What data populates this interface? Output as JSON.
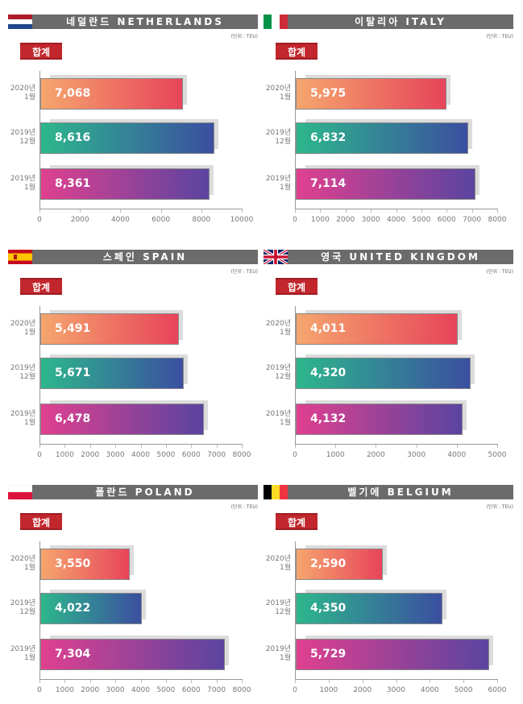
{
  "unit_label": "(단위 : TEU)",
  "badge_label": "합계",
  "bar_colors": [
    [
      "#f5a66e",
      "#e8445a"
    ],
    [
      "#2db78c",
      "#3b4fa0"
    ],
    [
      "#e0408f",
      "#5a44a0"
    ]
  ],
  "chart_data": [
    {
      "type": "bar",
      "orientation": "horizontal",
      "title": "네덜란드 NETHERLANDS",
      "flag": "netherlands-flag",
      "categories": [
        "2020년 1월",
        "2019년 12월",
        "2019년 1월"
      ],
      "values": [
        7068,
        8616,
        8361
      ],
      "value_labels": [
        "7,068",
        "8,616",
        "8,361"
      ],
      "xlim": [
        0,
        10000
      ],
      "ticks": [
        0,
        2000,
        4000,
        6000,
        8000,
        10000
      ]
    },
    {
      "type": "bar",
      "orientation": "horizontal",
      "title": "이탈리아 ITALY",
      "flag": "italy-flag",
      "categories": [
        "2020년 1월",
        "2019년 12월",
        "2019년 1월"
      ],
      "values": [
        5975,
        6832,
        7114
      ],
      "value_labels": [
        "5,975",
        "6,832",
        "7,114"
      ],
      "xlim": [
        0,
        8000
      ],
      "ticks": [
        0,
        1000,
        2000,
        3000,
        4000,
        5000,
        6000,
        7000,
        8000
      ]
    },
    {
      "type": "bar",
      "orientation": "horizontal",
      "title": "스페인 SPAIN",
      "flag": "spain-flag",
      "categories": [
        "2020년 1월",
        "2019년 12월",
        "2019년 1월"
      ],
      "values": [
        5491,
        5671,
        6478
      ],
      "value_labels": [
        "5,491",
        "5,671",
        "6,478"
      ],
      "xlim": [
        0,
        8000
      ],
      "ticks": [
        0,
        1000,
        2000,
        3000,
        4000,
        5000,
        6000,
        7000,
        8000
      ]
    },
    {
      "type": "bar",
      "orientation": "horizontal",
      "title": "영국 UNITED KINGDOM",
      "flag": "uk-flag",
      "categories": [
        "2020년 1월",
        "2019년 12월",
        "2019년 1월"
      ],
      "values": [
        4011,
        4320,
        4132
      ],
      "value_labels": [
        "4,011",
        "4,320",
        "4,132"
      ],
      "xlim": [
        0,
        5000
      ],
      "ticks": [
        0,
        1000,
        2000,
        3000,
        4000,
        5000
      ]
    },
    {
      "type": "bar",
      "orientation": "horizontal",
      "title": "폴란드 POLAND",
      "flag": "poland-flag",
      "categories": [
        "2020년 1월",
        "2019년 12월",
        "2019년 1월"
      ],
      "values": [
        3550,
        4022,
        7304
      ],
      "value_labels": [
        "3,550",
        "4,022",
        "7,304"
      ],
      "xlim": [
        0,
        8000
      ],
      "ticks": [
        0,
        1000,
        2000,
        3000,
        4000,
        5000,
        6000,
        7000,
        8000
      ]
    },
    {
      "type": "bar",
      "orientation": "horizontal",
      "title": "벨기에 BELGIUM",
      "flag": "belgium-flag",
      "categories": [
        "2020년 1월",
        "2019년 12월",
        "2019년 1월"
      ],
      "values": [
        2590,
        4350,
        5729
      ],
      "value_labels": [
        "2,590",
        "4,350",
        "5,729"
      ],
      "xlim": [
        0,
        6000
      ],
      "ticks": [
        0,
        1000,
        2000,
        3000,
        4000,
        5000,
        6000
      ]
    }
  ]
}
